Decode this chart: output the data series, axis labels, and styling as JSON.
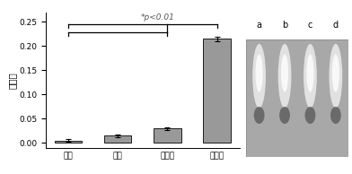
{
  "categories": [
    "探针",
    "对照",
    "野生型",
    "突变型"
  ],
  "values": [
    0.005,
    0.015,
    0.03,
    0.215
  ],
  "errors": [
    0.003,
    0.003,
    0.003,
    0.005
  ],
  "bar_color": "#999999",
  "ylabel": "吸光度",
  "ylim": [
    -0.01,
    0.27
  ],
  "yticks": [
    0.0,
    0.05,
    0.1,
    0.15,
    0.2,
    0.25
  ],
  "significance_text": "*p<0.01",
  "gel_labels": [
    "a",
    "b",
    "c",
    "d"
  ],
  "fig_width": 3.92,
  "fig_height": 1.94
}
